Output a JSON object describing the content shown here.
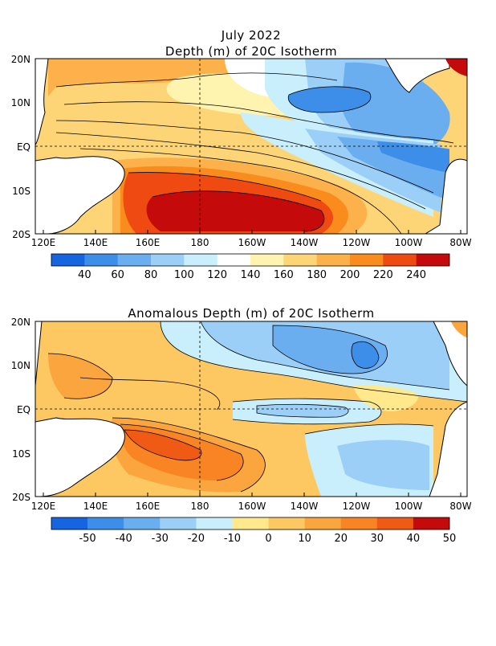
{
  "figure": {
    "title_line1": "July 2022",
    "title_line2": "Depth (m) of 20C Isotherm",
    "title_anom": "Anomalous Depth (m) of 20C Isotherm"
  },
  "axes": {
    "lon_ticks": [
      "120E",
      "140E",
      "160E",
      "180",
      "160W",
      "140W",
      "120W",
      "100W",
      "80W"
    ],
    "lat_ticks": [
      "20N",
      "10N",
      "EQ",
      "10S",
      "20S"
    ]
  },
  "colors": {
    "depth": [
      "#1565e0",
      "#3d8ee8",
      "#6aaef0",
      "#9ccff7",
      "#c9eefc",
      "#ffffff",
      "#fff3b0",
      "#fdd576",
      "#fcb14a",
      "#f98c1c",
      "#ee4a12",
      "#c40a0a"
    ],
    "anom": [
      "#1565e0",
      "#3d8ee8",
      "#6aaef0",
      "#9ccff7",
      "#c9eefc",
      "#ffe98c",
      "#fdc862",
      "#fba53e",
      "#f98424",
      "#ef5a14",
      "#c40a0a"
    ]
  },
  "chart_data": [
    {
      "type": "heatmap",
      "title": "July 2022 Depth (m) of 20C Isotherm",
      "x_range": [
        "120E",
        "80W"
      ],
      "y_range": [
        "20S",
        "20N"
      ],
      "colorbar_levels": [
        40,
        60,
        80,
        100,
        120,
        140,
        160,
        180,
        200,
        220,
        240
      ],
      "colorbar_labels": [
        "40",
        "60",
        "80",
        "100",
        "120",
        "140",
        "160",
        "180",
        "200",
        "220",
        "240"
      ],
      "grid": "dashed at 180 and EQ"
    },
    {
      "type": "heatmap",
      "title": "Anomalous Depth (m) of 20C Isotherm",
      "x_range": [
        "120E",
        "80W"
      ],
      "y_range": [
        "20S",
        "20N"
      ],
      "colorbar_levels": [
        -50,
        -40,
        -30,
        -20,
        -10,
        0,
        10,
        20,
        30,
        40,
        50
      ],
      "colorbar_labels": [
        "-50",
        "-40",
        "-30",
        "-20",
        "-10",
        "0",
        "10",
        "20",
        "30",
        "40",
        "50"
      ],
      "grid": "dashed at 180 and EQ"
    }
  ]
}
